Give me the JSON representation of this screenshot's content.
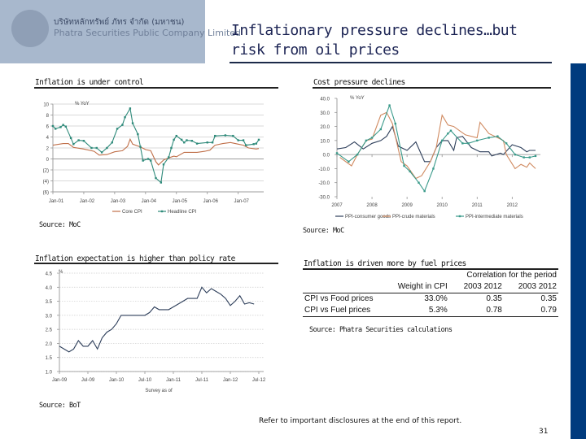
{
  "header": {
    "logo_thai": "บริษัทหลักทรัพย์ ภัทร จำกัด (มหาชน)",
    "logo_english": "Phatra Securities Public Company Limited",
    "title": "Inflationary pressure declines…but risk from oil prices"
  },
  "colors": {
    "brand_blue": "#003b7e",
    "core_cpi": "#c0704a",
    "headline_cpi": "#2e8a7a",
    "ppi_consumer": "#2d3e5a",
    "ppi_crude": "#d08a60",
    "ppi_intermediate": "#3a9a8a",
    "expectation": "#2d3e5a"
  },
  "panels": {
    "p1": {
      "title": "Inflation is under control",
      "source": "Source: MoC"
    },
    "p2": {
      "title": "Cost pressure declines",
      "source": "Source: MoC"
    },
    "p3": {
      "title": "Inflation expectation is higher than policy rate",
      "source": "Source: BoT"
    },
    "p4": {
      "title": "Inflation is driven more by fuel prices",
      "source": "Source:  Phatra Securities calculations"
    }
  },
  "chart_data": [
    {
      "type": "line",
      "ylabel": "% YoY",
      "ylim": [
        -6,
        10
      ],
      "yticks": [
        -6,
        -4,
        -2,
        0,
        2,
        4,
        6,
        8,
        10
      ],
      "ytick_labels": [
        "(6)",
        "(4)",
        "(2)",
        "0",
        "2",
        "4",
        "6",
        "8",
        "10"
      ],
      "xtick_labels": [
        "Jan-01",
        "Jan-02",
        "Jan-03",
        "Jan-04",
        "Jan-05",
        "Jan-06",
        "Jan-07"
      ],
      "xticks": [
        "2001-01",
        "2002-01",
        "2003-01",
        "2004-01",
        "2005-01",
        "2006-01",
        "2007-01"
      ],
      "xlim": [
        "2001-01",
        "2007-09"
      ],
      "grid": true,
      "legend": "bottom",
      "series": [
        {
          "name": "Core CPI",
          "markers": false,
          "points": [
            [
              "2001-01",
              2.5
            ],
            [
              "2001-05",
              2.8
            ],
            [
              "2001-07",
              2.8
            ],
            [
              "2001-09",
              2.1
            ],
            [
              "2002-01",
              1.8
            ],
            [
              "2002-05",
              1.4
            ],
            [
              "2002-07",
              0.7
            ],
            [
              "2002-10",
              0.8
            ],
            [
              "2003-01",
              1.3
            ],
            [
              "2003-04",
              1.5
            ],
            [
              "2003-06",
              2.3
            ],
            [
              "2003-07",
              3.6
            ],
            [
              "2003-08",
              2.7
            ],
            [
              "2003-11",
              2.2
            ],
            [
              "2004-01",
              1.7
            ],
            [
              "2004-03",
              1.5
            ],
            [
              "2004-05",
              -0.5
            ],
            [
              "2004-06",
              -1.1
            ],
            [
              "2004-08",
              -0.2
            ],
            [
              "2004-10",
              0.2
            ],
            [
              "2004-12",
              0.5
            ],
            [
              "2005-01",
              0.4
            ],
            [
              "2005-04",
              1.2
            ],
            [
              "2005-09",
              1.2
            ],
            [
              "2005-12",
              1.4
            ],
            [
              "2006-02",
              1.6
            ],
            [
              "2006-04",
              2.5
            ],
            [
              "2006-07",
              2.8
            ],
            [
              "2006-10",
              3.0
            ],
            [
              "2007-01",
              2.7
            ],
            [
              "2007-03",
              2.5
            ],
            [
              "2007-05",
              2.0
            ],
            [
              "2007-08",
              1.8
            ],
            [
              "2007-09",
              1.9
            ]
          ]
        },
        {
          "name": "Headline CPI",
          "markers": true,
          "points": [
            [
              "2001-01",
              6.0
            ],
            [
              "2001-02",
              5.5
            ],
            [
              "2001-04",
              5.8
            ],
            [
              "2001-05",
              6.2
            ],
            [
              "2001-06",
              5.9
            ],
            [
              "2001-08",
              3.8
            ],
            [
              "2001-09",
              2.7
            ],
            [
              "2001-11",
              3.4
            ],
            [
              "2002-01",
              3.3
            ],
            [
              "2002-04",
              2.0
            ],
            [
              "2002-06",
              2.0
            ],
            [
              "2002-08",
              1.2
            ],
            [
              "2002-10",
              2.0
            ],
            [
              "2002-12",
              3.0
            ],
            [
              "2003-02",
              5.5
            ],
            [
              "2003-04",
              6.2
            ],
            [
              "2003-05",
              7.6
            ],
            [
              "2003-07",
              9.2
            ],
            [
              "2003-08",
              6.5
            ],
            [
              "2003-10",
              4.5
            ],
            [
              "2003-11",
              2.2
            ],
            [
              "2003-12",
              -0.3
            ],
            [
              "2004-02",
              0.0
            ],
            [
              "2004-03",
              -0.3
            ],
            [
              "2004-05",
              -3.5
            ],
            [
              "2004-07",
              -4.3
            ],
            [
              "2004-08",
              -1.0
            ],
            [
              "2004-10",
              0.3
            ],
            [
              "2004-11",
              2.0
            ],
            [
              "2004-12",
              3.5
            ],
            [
              "2005-01",
              4.2
            ],
            [
              "2005-03",
              3.5
            ],
            [
              "2005-04",
              3.0
            ],
            [
              "2005-05",
              3.4
            ],
            [
              "2005-07",
              3.3
            ],
            [
              "2005-09",
              2.8
            ],
            [
              "2006-01",
              3.0
            ],
            [
              "2006-03",
              3.0
            ],
            [
              "2006-04",
              4.2
            ],
            [
              "2006-08",
              4.3
            ],
            [
              "2006-11",
              4.2
            ],
            [
              "2007-01",
              3.4
            ],
            [
              "2007-03",
              3.4
            ],
            [
              "2007-04",
              2.5
            ],
            [
              "2007-07",
              2.7
            ],
            [
              "2007-08",
              2.8
            ],
            [
              "2007-09",
              3.5
            ]
          ]
        }
      ]
    },
    {
      "type": "line",
      "ylabel": "% YoY",
      "ylim": [
        -30,
        40
      ],
      "yticks": [
        -30,
        -20,
        -10,
        0,
        10,
        20,
        30,
        40
      ],
      "ytick_labels": [
        "-30.0",
        "-20.0",
        "-10.0",
        "0.0",
        "10.0",
        "20.0",
        "30.0",
        "40.0"
      ],
      "xtick_labels": [
        "2007",
        "2008",
        "2009",
        "2010",
        "2011",
        "2012"
      ],
      "xticks": [
        "2007-01",
        "2008-01",
        "2009-01",
        "2010-01",
        "2011-01",
        "2012-01"
      ],
      "xlim": [
        "2007-01",
        "2012-09"
      ],
      "grid": false,
      "legend": "bottom",
      "series": [
        {
          "name": "PPI-consumer goods",
          "markers": false,
          "points": [
            [
              "2007-01",
              4
            ],
            [
              "2007-04",
              5
            ],
            [
              "2007-07",
              9
            ],
            [
              "2007-10",
              4
            ],
            [
              "2008-01",
              8
            ],
            [
              "2008-04",
              10
            ],
            [
              "2008-06",
              13
            ],
            [
              "2008-08",
              20
            ],
            [
              "2008-10",
              6
            ],
            [
              "2009-01",
              3
            ],
            [
              "2009-04",
              9
            ],
            [
              "2009-07",
              -5
            ],
            [
              "2009-09",
              -5
            ],
            [
              "2009-11",
              5
            ],
            [
              "2010-01",
              10
            ],
            [
              "2010-03",
              10
            ],
            [
              "2010-05",
              3
            ],
            [
              "2010-06",
              12
            ],
            [
              "2010-08",
              13
            ],
            [
              "2010-11",
              5
            ],
            [
              "2011-02",
              2
            ],
            [
              "2011-05",
              2
            ],
            [
              "2011-06",
              -1
            ],
            [
              "2011-09",
              1
            ],
            [
              "2011-10",
              0
            ],
            [
              "2012-01",
              7
            ],
            [
              "2012-04",
              5
            ],
            [
              "2012-06",
              2
            ],
            [
              "2012-07",
              3
            ],
            [
              "2012-09",
              3
            ]
          ]
        },
        {
          "name": "PPI-crude materials",
          "markers": false,
          "points": [
            [
              "2007-02",
              -2
            ],
            [
              "2007-06",
              -8
            ],
            [
              "2007-08",
              0
            ],
            [
              "2007-11",
              10
            ],
            [
              "2008-01",
              11
            ],
            [
              "2008-04",
              28
            ],
            [
              "2008-06",
              30
            ],
            [
              "2008-08",
              22
            ],
            [
              "2008-11",
              -5
            ],
            [
              "2009-01",
              -8
            ],
            [
              "2009-04",
              -17
            ],
            [
              "2009-06",
              -15
            ],
            [
              "2009-09",
              -5
            ],
            [
              "2009-11",
              5
            ],
            [
              "2010-01",
              28
            ],
            [
              "2010-03",
              21
            ],
            [
              "2010-05",
              20
            ],
            [
              "2010-07",
              17
            ],
            [
              "2010-09",
              14
            ],
            [
              "2011-01",
              12
            ],
            [
              "2011-02",
              23
            ],
            [
              "2011-05",
              15
            ],
            [
              "2011-08",
              12
            ],
            [
              "2011-10",
              10
            ],
            [
              "2011-11",
              0
            ],
            [
              "2012-02",
              -10
            ],
            [
              "2012-04",
              -7
            ],
            [
              "2012-06",
              -9
            ],
            [
              "2012-07",
              -6
            ],
            [
              "2012-09",
              -10
            ]
          ]
        },
        {
          "name": "PPI-intermediate materials",
          "markers": true,
          "points": [
            [
              "2007-01",
              1
            ],
            [
              "2007-05",
              -5
            ],
            [
              "2007-08",
              0
            ],
            [
              "2007-11",
              10
            ],
            [
              "2008-01",
              12
            ],
            [
              "2008-04",
              18
            ],
            [
              "2008-07",
              35
            ],
            [
              "2008-09",
              22
            ],
            [
              "2008-12",
              -8
            ],
            [
              "2009-02",
              -12
            ],
            [
              "2009-05",
              -20
            ],
            [
              "2009-07",
              -26
            ],
            [
              "2009-10",
              -10
            ],
            [
              "2010-01",
              10
            ],
            [
              "2010-03",
              15
            ],
            [
              "2010-04",
              17
            ],
            [
              "2010-08",
              8
            ],
            [
              "2010-10",
              8
            ],
            [
              "2011-01",
              10
            ],
            [
              "2011-05",
              12
            ],
            [
              "2011-08",
              13
            ],
            [
              "2011-11",
              8
            ],
            [
              "2012-02",
              0
            ],
            [
              "2012-05",
              -2
            ],
            [
              "2012-07",
              -2
            ],
            [
              "2012-09",
              -1
            ]
          ]
        }
      ]
    },
    {
      "type": "line",
      "ylabel": "%",
      "xlabel": "Survey as of",
      "ylim": [
        1.0,
        4.5
      ],
      "yticks": [
        1.0,
        1.5,
        2.0,
        2.5,
        3.0,
        3.5,
        4.0,
        4.5
      ],
      "ytick_labels": [
        "1.0",
        "1.5",
        "2.0",
        "2.5",
        "3.0",
        "3.5",
        "4.0",
        "4.5"
      ],
      "xtick_labels": [
        "Jan-09",
        "Jul-09",
        "Jan-10",
        "Jul-10",
        "Jan-11",
        "Jul-11",
        "Jan-12",
        "Jul-12"
      ],
      "xticks": [
        "2009-01",
        "2009-07",
        "2010-01",
        "2010-07",
        "2011-01",
        "2011-07",
        "2012-01",
        "2012-07"
      ],
      "xlim": [
        "2009-01",
        "2012-07"
      ],
      "grid": true,
      "legend": "none",
      "series": [
        {
          "markers": false,
          "points": [
            [
              "2009-01",
              1.9
            ],
            [
              "2009-03",
              1.7
            ],
            [
              "2009-04",
              1.8
            ],
            [
              "2009-05",
              2.1
            ],
            [
              "2009-06",
              1.9
            ],
            [
              "2009-07",
              1.9
            ],
            [
              "2009-08",
              2.1
            ],
            [
              "2009-09",
              1.8
            ],
            [
              "2009-10",
              2.2
            ],
            [
              "2009-11",
              2.4
            ],
            [
              "2009-12",
              2.5
            ],
            [
              "2010-01",
              2.7
            ],
            [
              "2010-02",
              3.0
            ],
            [
              "2010-07",
              3.0
            ],
            [
              "2010-08",
              3.1
            ],
            [
              "2010-09",
              3.3
            ],
            [
              "2010-10",
              3.2
            ],
            [
              "2010-12",
              3.2
            ],
            [
              "2011-01",
              3.3
            ],
            [
              "2011-03",
              3.5
            ],
            [
              "2011-04",
              3.6
            ],
            [
              "2011-06",
              3.6
            ],
            [
              "2011-07",
              4.0
            ],
            [
              "2011-08",
              3.8
            ],
            [
              "2011-09",
              3.95
            ],
            [
              "2011-10",
              3.85
            ],
            [
              "2011-11",
              3.75
            ],
            [
              "2011-12",
              3.6
            ],
            [
              "2012-01",
              3.35
            ],
            [
              "2012-02",
              3.5
            ],
            [
              "2012-03",
              3.7
            ],
            [
              "2012-04",
              3.4
            ],
            [
              "2012-05",
              3.45
            ],
            [
              "2012-06",
              3.4
            ]
          ]
        }
      ]
    },
    {
      "type": "table",
      "group_header": "Correlation for the period",
      "columns": [
        "",
        "Weight in CPI",
        "2003 2012",
        "2003 2012"
      ],
      "rows": [
        [
          "CPI vs Food prices",
          "33.0%",
          "0.35",
          "0.35"
        ],
        [
          "CPI vs Fuel prices",
          "5.3%",
          "0.78",
          "0.79"
        ]
      ]
    }
  ],
  "footer": {
    "disclaimer": "Refer to important disclosures at the end of this report.",
    "page_number": "31"
  }
}
